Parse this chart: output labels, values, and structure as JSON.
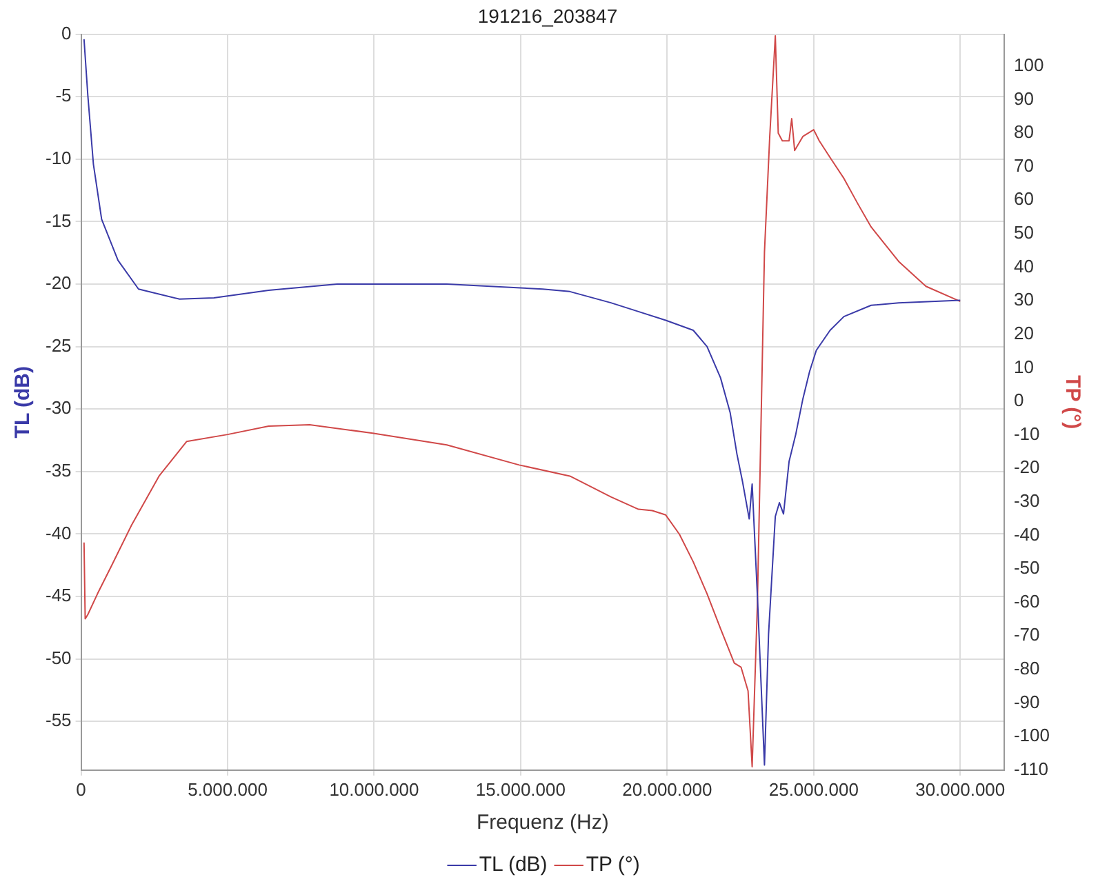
{
  "chart_data": {
    "type": "line",
    "title": "191216_203847",
    "xlabel": "Frequenz (Hz)",
    "ylabel": "TL (dB)",
    "y2label": "TP (°)",
    "xlim": [
      0,
      31500000
    ],
    "xticks": [
      0,
      {
        "value": 5000000,
        "label": "5.000.000"
      },
      {
        "value": 10000000,
        "label": "10.000.000"
      },
      {
        "value": 15000000,
        "label": "15.000.000"
      },
      {
        "value": 20000000,
        "label": "20.000.000"
      },
      {
        "value": 25000000,
        "label": "25.000.000"
      },
      {
        "value": 30000000,
        "label": "30.000.000"
      }
    ],
    "ylim": [
      -58.9,
      0
    ],
    "yticks": [
      -55,
      -50,
      -45,
      -40,
      -35,
      -30,
      -25,
      -20,
      -15,
      -10,
      -5,
      0
    ],
    "y2lim": [
      -110,
      109.5
    ],
    "y2ticks": [
      -110,
      -100,
      -90,
      -80,
      -70,
      -60,
      -50,
      -40,
      -30,
      -20,
      -10,
      0,
      10,
      20,
      30,
      40,
      50,
      60,
      70,
      80,
      90,
      100
    ],
    "grid": true,
    "legend": "bottom",
    "marker": "none",
    "line_style": "solid",
    "series": [
      {
        "name": "TL (dB)",
        "color": "#3a3aa8",
        "x": [
          100000,
          230000,
          420000,
          700000,
          1260000,
          1960000,
          3360000,
          4530000,
          6400000,
          8740000,
          12480000,
          15750000,
          16680000,
          18080000,
          19020000,
          19950000,
          20890000,
          21360000,
          21820000,
          22150000,
          22380000,
          22570000,
          22800000,
          22900000,
          23080000,
          23320000,
          23460000,
          23690000,
          23830000,
          23970000,
          24160000,
          24390000,
          24630000,
          24860000,
          25090000,
          25560000,
          26030000,
          26960000,
          27900000,
          30000000
        ],
        "values": [
          -0.4,
          -4.9,
          -10.4,
          -14.8,
          -18.1,
          -20.4,
          -21.2,
          -21.1,
          -20.5,
          -20.0,
          -20.0,
          -20.4,
          -20.6,
          -21.5,
          -22.2,
          -22.9,
          -23.7,
          -25,
          -27.5,
          -30.3,
          -33.6,
          -35.8,
          -38.8,
          -36,
          -45,
          -58.5,
          -48,
          -38.6,
          -37.5,
          -38.4,
          -34.2,
          -32,
          -29.2,
          -27,
          -25.3,
          -23.7,
          -22.6,
          -21.7,
          -21.5,
          -21.3
        ]
      },
      {
        "name": "TP (°)",
        "color": "#d04848",
        "axis": "y2",
        "x": [
          100000,
          140000,
          230000,
          560000,
          1030000,
          1730000,
          2660000,
          3600000,
          5000000,
          6400000,
          7800000,
          9950000,
          12480000,
          14950000,
          16680000,
          18080000,
          19020000,
          19490000,
          19950000,
          20420000,
          20890000,
          21360000,
          21820000,
          22290000,
          22520000,
          22760000,
          22900000,
          23080000,
          23320000,
          23500000,
          23690000,
          23790000,
          23930000,
          24160000,
          24250000,
          24350000,
          24630000,
          25000000,
          25190000,
          25560000,
          26030000,
          26500000,
          26960000,
          27900000,
          28830000,
          30000000
        ],
        "values": [
          -42.1,
          -64.9,
          -63.6,
          -57.4,
          -49.2,
          -36.8,
          -22.3,
          -12,
          -9.9,
          -7.4,
          -7.0,
          -9.5,
          -13,
          -19,
          -22.3,
          -28.5,
          -32.2,
          -32.6,
          -33.9,
          -39.7,
          -47.9,
          -57.4,
          -67.8,
          -78.1,
          -79.3,
          -86.4,
          -109,
          -60,
          44.5,
          79,
          109,
          80,
          77.7,
          77.7,
          84.3,
          74.8,
          79,
          81,
          77.7,
          72.7,
          66.5,
          59,
          52,
          41.7,
          34.3,
          29.8
        ]
      }
    ]
  }
}
